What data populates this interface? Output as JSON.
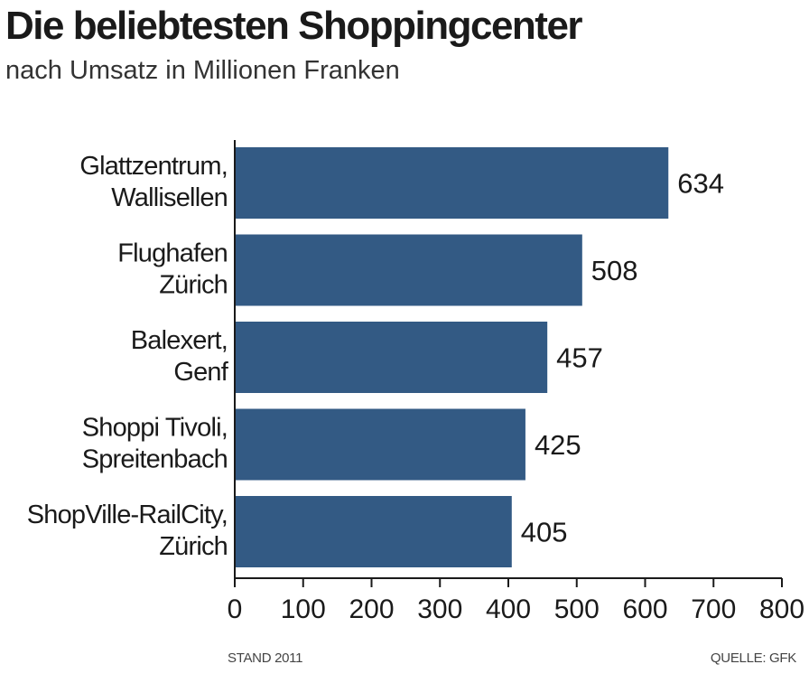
{
  "chart_data": {
    "type": "bar",
    "orientation": "horizontal",
    "title": "Die beliebtesten Shoppingcenter",
    "subtitle": "nach Umsatz in Millionen Franken",
    "categories": [
      [
        "Glattzentrum,",
        "Wallisellen"
      ],
      [
        "Flughafen",
        "Zürich"
      ],
      [
        "Balexert,",
        "Genf"
      ],
      [
        "Shoppi Tivoli,",
        "Spreitenbach"
      ],
      [
        "ShopVille-RailCity,",
        "Zürich"
      ]
    ],
    "values": [
      634,
      508,
      457,
      425,
      405
    ],
    "xlim": [
      0,
      800
    ],
    "xticks": [
      0,
      100,
      200,
      300,
      400,
      500,
      600,
      700,
      800
    ],
    "grid": false,
    "bar_color": "#335a84"
  },
  "footer": {
    "left": "STAND 2011",
    "right": "QUELLE: GFK"
  }
}
